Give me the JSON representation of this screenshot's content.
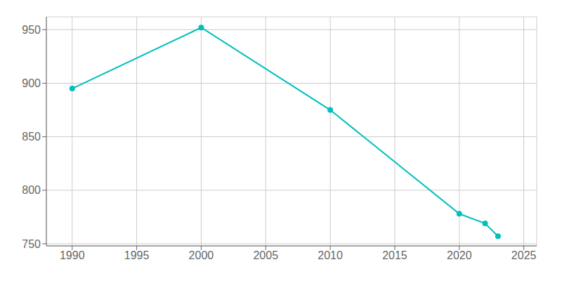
{
  "chart_data": {
    "type": "line",
    "x": [
      1990,
      2000,
      2010,
      2020,
      2022,
      2023
    ],
    "values": [
      895,
      952,
      875,
      778,
      769,
      757
    ],
    "color": "#00BFBF",
    "marker": "circle",
    "line_style": "solid",
    "xlim": [
      1988,
      2026
    ],
    "ylim": [
      748,
      962
    ],
    "xticks": [
      1990,
      1995,
      2000,
      2005,
      2010,
      2015,
      2020,
      2025
    ],
    "yticks": [
      750,
      800,
      850,
      900,
      950
    ],
    "grid": true
  }
}
